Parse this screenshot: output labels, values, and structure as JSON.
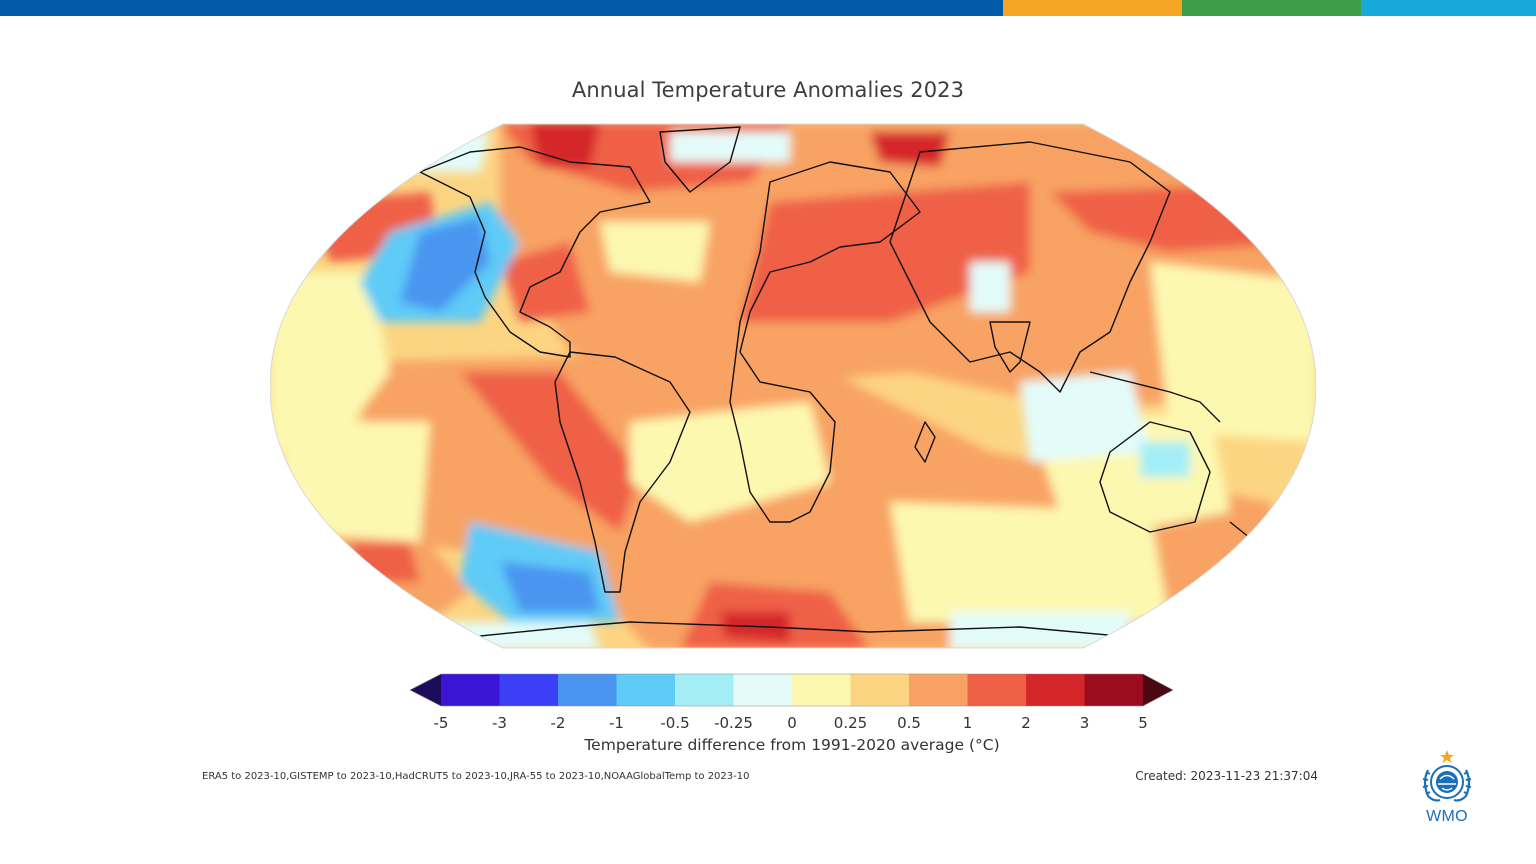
{
  "header_bar": {
    "colors": [
      "#005aa8",
      "#f4a523",
      "#3e9d48",
      "#17a9d8"
    ]
  },
  "title": "Annual Temperature Anomalies 2023",
  "map": {
    "projection": "Robinson",
    "extent": "global",
    "content": "temperature anomaly contours with coastlines"
  },
  "colorbar": {
    "ticks": [
      "-5",
      "-3",
      "-2",
      "-1",
      "-0.5",
      "-0.25",
      "0",
      "0.25",
      "0.5",
      "1",
      "2",
      "3",
      "5"
    ],
    "colors": [
      "#1d0b5c",
      "#3b14d6",
      "#3b3ff5",
      "#4a95f0",
      "#5fcbf7",
      "#a3eef7",
      "#e3fcfa",
      "#fdf8b0",
      "#fcd583",
      "#f8a363",
      "#ef6147",
      "#d5262a",
      "#9b0d1e",
      "#4a0813"
    ],
    "label": "Temperature difference from 1991-2020 average (°C)"
  },
  "footer": {
    "sources": "ERA5 to 2023-10,GISTEMP to 2023-10,HadCRUT5 to 2023-10,JRA-55 to 2023-10,NOAAGlobalTemp to 2023-10",
    "created": "Created: 2023-11-23 21:37:04"
  },
  "logo": {
    "text": "WMO",
    "icon": "wmo-emblem-icon"
  }
}
